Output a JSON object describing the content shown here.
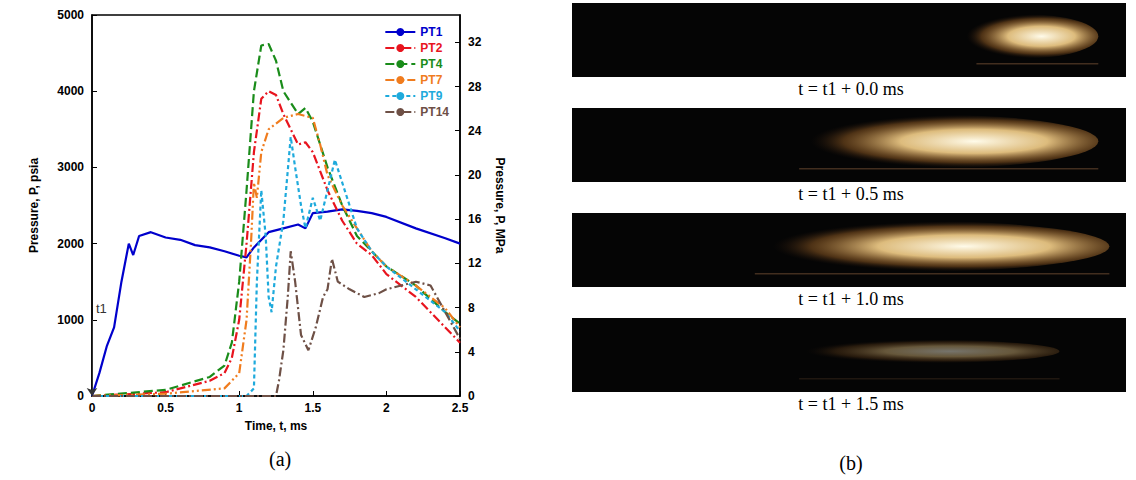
{
  "chart_data": {
    "type": "line",
    "panel": "(a)",
    "x_label": "Time, t, ms",
    "y_label": "Pressure, P, psia",
    "y2_label": "Pressure, P, MPa",
    "xlim": [
      0,
      2.5
    ],
    "xticks": [
      0,
      0.5,
      1,
      1.5,
      2,
      2.5
    ],
    "ylim": [
      0,
      5000
    ],
    "yticks": [
      0,
      1000,
      2000,
      3000,
      4000,
      5000
    ],
    "y2lim": [
      0,
      34.47
    ],
    "y2ticks": [
      0,
      4,
      8,
      12,
      16,
      20,
      24,
      28,
      32
    ],
    "grid": false,
    "legend": "upper right",
    "annotations": [
      {
        "text": "t1",
        "x": 0,
        "y": 1000,
        "target_y": 0
      }
    ],
    "series": [
      {
        "name": "PT1",
        "color": "#0000cc",
        "line_style": "solid",
        "x": [
          0,
          0.05,
          0.1,
          0.15,
          0.2,
          0.25,
          0.28,
          0.32,
          0.4,
          0.5,
          0.6,
          0.7,
          0.8,
          0.9,
          1.0,
          1.05,
          1.1,
          1.2,
          1.3,
          1.4,
          1.45,
          1.5,
          1.6,
          1.7,
          1.8,
          1.9,
          2.0,
          2.2,
          2.4,
          2.5
        ],
        "values": [
          0,
          300,
          650,
          900,
          1500,
          2000,
          1850,
          2100,
          2150,
          2080,
          2050,
          1980,
          1950,
          1900,
          1840,
          1820,
          1950,
          2150,
          2200,
          2250,
          2200,
          2400,
          2420,
          2450,
          2430,
          2400,
          2350,
          2200,
          2070,
          2000
        ]
      },
      {
        "name": "PT2",
        "color": "#e8141e",
        "line_style": "dashdot",
        "x": [
          0,
          0.5,
          0.8,
          0.9,
          0.95,
          1.0,
          1.05,
          1.1,
          1.15,
          1.2,
          1.25,
          1.3,
          1.4,
          1.45,
          1.5,
          1.6,
          1.7,
          1.8,
          1.9,
          2.0,
          2.2,
          2.4,
          2.5
        ],
        "values": [
          0,
          50,
          200,
          300,
          500,
          1000,
          2000,
          3200,
          3900,
          4000,
          3950,
          3700,
          3300,
          3330,
          3200,
          2700,
          2300,
          2000,
          1850,
          1600,
          1300,
          900,
          700
        ]
      },
      {
        "name": "PT4",
        "color": "#1a8c1a",
        "line_style": "dashed",
        "x": [
          0,
          0.5,
          0.8,
          0.9,
          0.95,
          1.0,
          1.05,
          1.1,
          1.15,
          1.2,
          1.25,
          1.3,
          1.4,
          1.45,
          1.5,
          1.6,
          1.7,
          1.8,
          1.9,
          2.0,
          2.2,
          2.4,
          2.5
        ],
        "values": [
          0,
          80,
          250,
          400,
          700,
          1500,
          2700,
          4000,
          4600,
          4620,
          4400,
          4000,
          3700,
          3780,
          3600,
          3000,
          2500,
          2100,
          1900,
          1700,
          1450,
          1100,
          950
        ]
      },
      {
        "name": "PT7",
        "color": "#f07c1e",
        "line_style": "dashdotdot",
        "x": [
          0,
          0.5,
          0.9,
          1.0,
          1.05,
          1.08,
          1.1,
          1.12,
          1.15,
          1.2,
          1.3,
          1.4,
          1.5,
          1.55,
          1.6,
          1.7,
          1.8,
          1.9,
          2.0,
          2.2,
          2.4,
          2.5
        ],
        "values": [
          0,
          30,
          100,
          300,
          1000,
          2000,
          2800,
          2600,
          3200,
          3500,
          3650,
          3700,
          3650,
          3300,
          2900,
          2500,
          2200,
          1900,
          1700,
          1450,
          1150,
          900
        ]
      },
      {
        "name": "PT9",
        "color": "#1eaadc",
        "line_style": "short_dash",
        "x": [
          0,
          1.05,
          1.1,
          1.12,
          1.15,
          1.18,
          1.2,
          1.22,
          1.25,
          1.3,
          1.35,
          1.38,
          1.42,
          1.45,
          1.5,
          1.55,
          1.6,
          1.65,
          1.7,
          1.75,
          1.8,
          1.9,
          2.0,
          2.2,
          2.4,
          2.5
        ],
        "values": [
          0,
          0,
          100,
          1500,
          2700,
          2100,
          1300,
          1100,
          1700,
          2300,
          3400,
          3000,
          2500,
          2200,
          2600,
          2300,
          2700,
          3100,
          2800,
          2500,
          2200,
          1900,
          1700,
          1400,
          1100,
          850
        ]
      },
      {
        "name": "PT14",
        "color": "#6e5046",
        "line_style": "dashdot",
        "x": [
          0,
          1.25,
          1.27,
          1.3,
          1.33,
          1.35,
          1.38,
          1.42,
          1.47,
          1.52,
          1.57,
          1.6,
          1.63,
          1.67,
          1.75,
          1.85,
          1.95,
          2.0,
          2.1,
          2.2,
          2.3,
          2.4,
          2.5
        ],
        "values": [
          0,
          0,
          200,
          600,
          1300,
          1900,
          1500,
          800,
          600,
          900,
          1300,
          1400,
          1800,
          1500,
          1400,
          1300,
          1350,
          1400,
          1450,
          1500,
          1450,
          1100,
          750
        ]
      }
    ]
  },
  "images": {
    "panel": "(b)",
    "captions": [
      "t = t1 + 0.0 ms",
      "t = t1 + 0.5 ms",
      "t = t1 + 1.0 ms",
      "t = t1 + 1.5 ms"
    ]
  }
}
